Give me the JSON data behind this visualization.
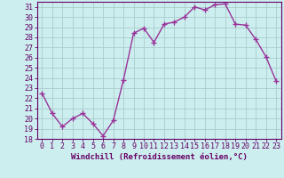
{
  "x": [
    0,
    1,
    2,
    3,
    4,
    5,
    6,
    7,
    8,
    9,
    10,
    11,
    12,
    13,
    14,
    15,
    16,
    17,
    18,
    19,
    20,
    21,
    22,
    23
  ],
  "y": [
    22.5,
    20.5,
    19.2,
    20.0,
    20.5,
    19.5,
    18.3,
    19.8,
    23.8,
    28.4,
    28.9,
    27.5,
    29.3,
    29.5,
    30.0,
    31.0,
    30.7,
    31.2,
    31.3,
    29.3,
    29.2,
    27.8,
    26.1,
    23.7
  ],
  "line_color": "#993399",
  "marker": "+",
  "marker_size": 4,
  "bg_color": "#cceeee",
  "grid_color": "#aacccc",
  "xlabel": "Windchill (Refroidissement éolien,°C)",
  "ylim": [
    18,
    31.5
  ],
  "xlim": [
    -0.5,
    23.5
  ],
  "yticks": [
    18,
    19,
    20,
    21,
    22,
    23,
    24,
    25,
    26,
    27,
    28,
    29,
    30,
    31
  ],
  "xticks": [
    0,
    1,
    2,
    3,
    4,
    5,
    6,
    7,
    8,
    9,
    10,
    11,
    12,
    13,
    14,
    15,
    16,
    17,
    18,
    19,
    20,
    21,
    22,
    23
  ],
  "xlabel_fontsize": 6.5,
  "tick_fontsize": 6.0,
  "label_color": "#660066",
  "line_width": 1.0,
  "marker_edge_width": 1.0
}
